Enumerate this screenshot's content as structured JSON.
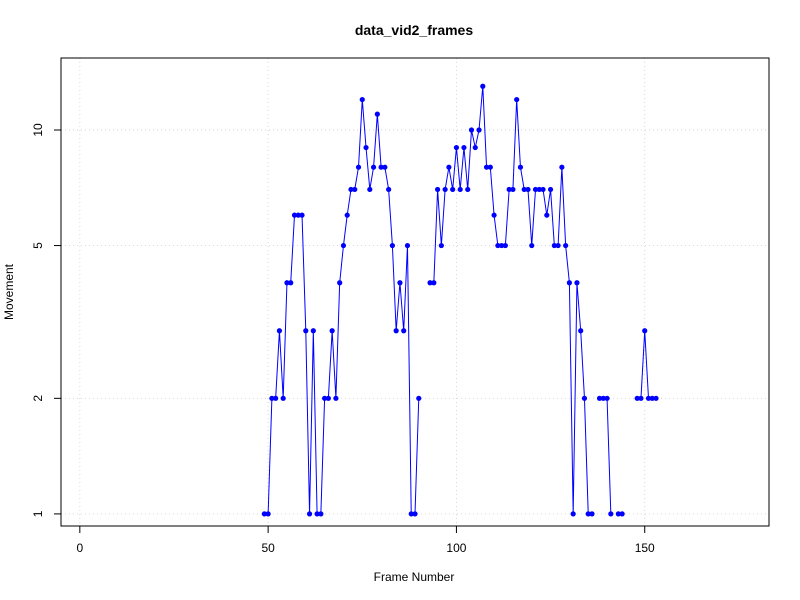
{
  "chart_data": {
    "type": "line",
    "title": "data_vid2_frames",
    "xlabel": "Frame Number",
    "ylabel": "Movement",
    "xlim": [
      -5,
      183
    ],
    "ylim": [
      0.93,
      15.4
    ],
    "y_scale": "log",
    "x_ticks": [
      0,
      50,
      100,
      150
    ],
    "y_ticks": [
      1,
      2,
      5,
      10
    ],
    "grid": true,
    "colors": {
      "line": "#0000ff",
      "points": "#0000ff"
    },
    "series": [
      {
        "x": [
          49,
          50,
          51,
          52,
          53,
          54,
          55,
          56,
          57,
          58,
          59,
          60,
          61,
          62,
          63,
          64,
          65,
          66,
          67,
          68,
          69,
          70,
          71,
          72,
          73,
          74,
          75,
          76,
          77,
          78,
          79,
          80,
          81,
          82,
          83,
          84,
          85,
          86,
          87,
          88,
          89,
          90,
          93,
          94,
          95,
          96,
          97,
          98,
          99,
          100,
          101,
          102,
          103,
          104,
          105,
          106,
          107,
          108,
          109,
          110,
          111,
          112,
          113,
          114,
          115,
          116,
          117,
          118,
          119,
          120,
          121,
          122,
          123,
          124,
          125,
          126,
          127,
          128,
          129,
          130,
          131,
          132,
          133,
          134,
          135,
          136,
          138,
          139,
          140,
          141,
          143,
          144,
          148,
          149,
          150,
          151,
          152,
          153
        ],
        "y": [
          1,
          1,
          2,
          2,
          3,
          2,
          4,
          4,
          6,
          6,
          6,
          3,
          1,
          3,
          1,
          1,
          2,
          2,
          3,
          2,
          4,
          5,
          6,
          7,
          7,
          8,
          12,
          9,
          7,
          8,
          11,
          8,
          8,
          7,
          5,
          3,
          4,
          3,
          5,
          1,
          1,
          2,
          4,
          4,
          7,
          5,
          7,
          8,
          7,
          9,
          7,
          9,
          7,
          10,
          9,
          10,
          13,
          8,
          8,
          6,
          5,
          5,
          5,
          7,
          7,
          12,
          8,
          7,
          7,
          5,
          7,
          7,
          7,
          6,
          7,
          5,
          5,
          8,
          5,
          4,
          1,
          4,
          3,
          2,
          1,
          1,
          2,
          2,
          2,
          1,
          1,
          1,
          2,
          2,
          3,
          2,
          2,
          2
        ]
      }
    ]
  }
}
